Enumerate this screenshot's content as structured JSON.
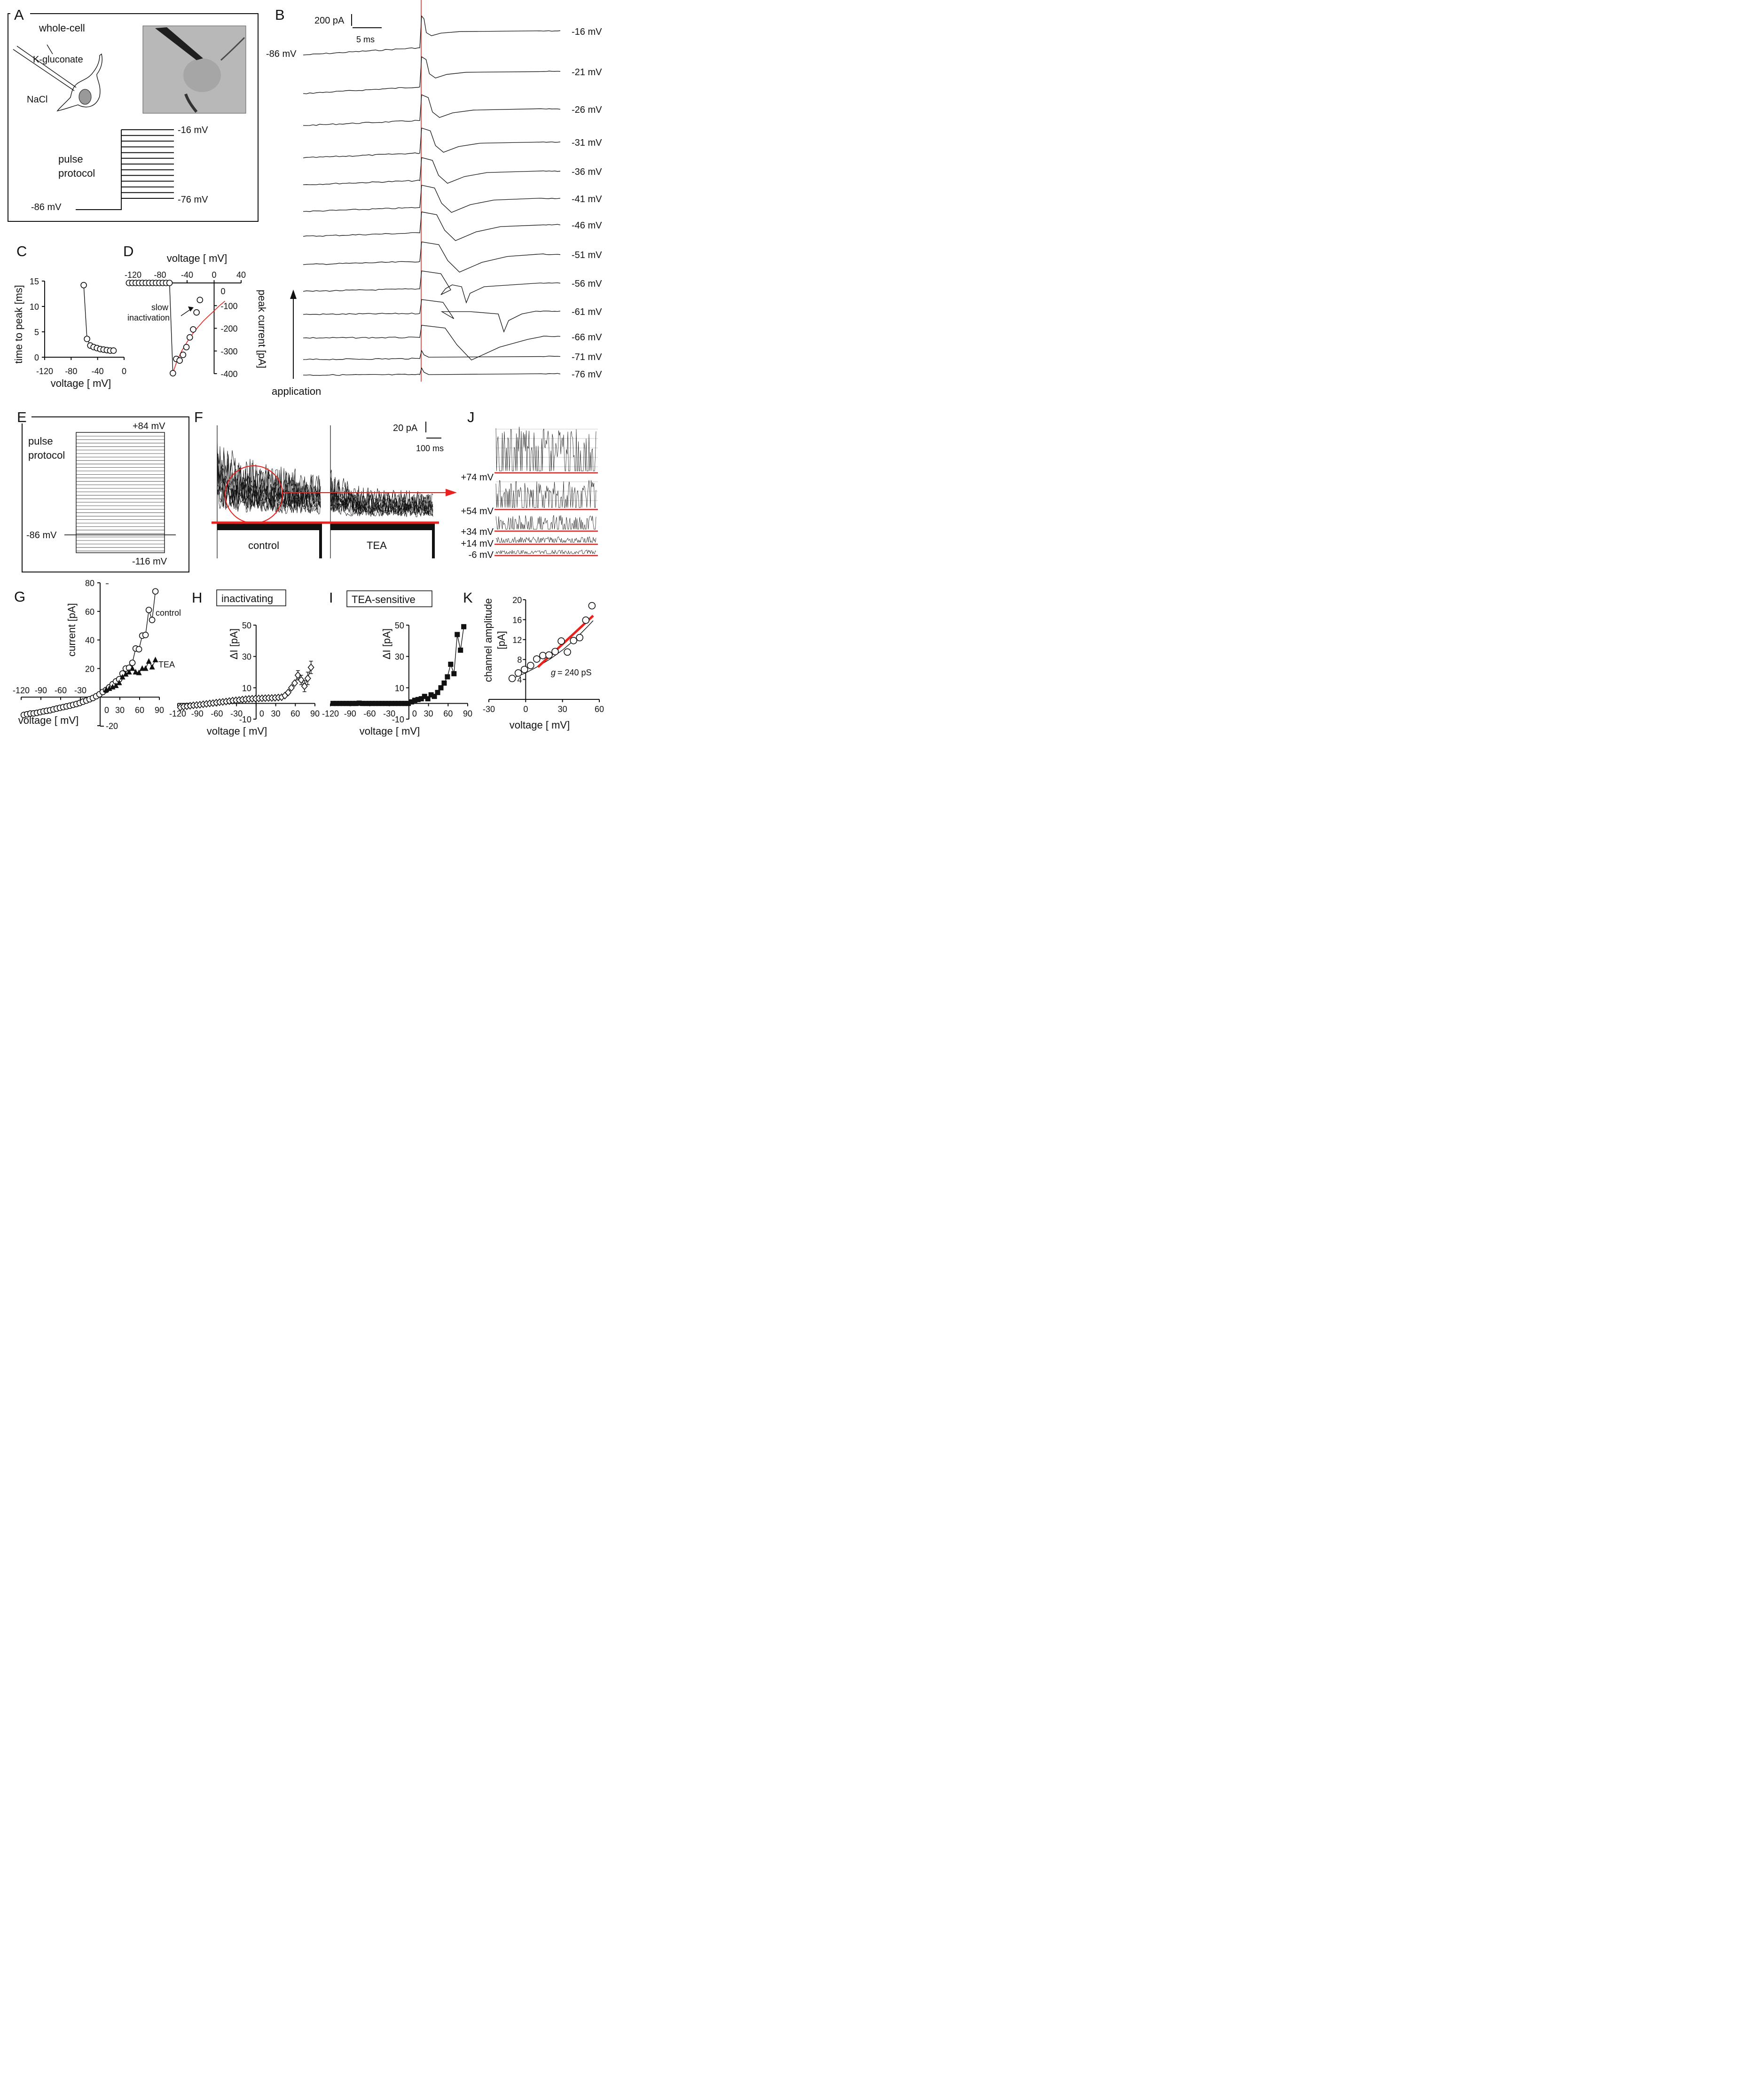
{
  "panels": {
    "A": {
      "letter": "A",
      "title": "whole-cell",
      "pipette_solution": "K-gluconate",
      "bath_solution": "NaCl",
      "protocol_label": [
        "pulse",
        "protocol"
      ],
      "holding": "-86 mV",
      "step_top": "-16 mV",
      "step_bottom": "-76 mV"
    },
    "B": {
      "letter": "B",
      "scale_current": "200 pA",
      "scale_time": "5 ms",
      "holding": "-86 mV",
      "trace_labels": [
        "-16 mV",
        "-21 mV",
        "-26 mV",
        "-31 mV",
        "-36 mV",
        "-41 mV",
        "-46 mV",
        "-51 mV",
        "-56 mV",
        "-61 mV",
        "-66 mV",
        "-71 mV",
        "-76 mV"
      ],
      "application_label": "application"
    },
    "C": {
      "letter": "C"
    },
    "D": {
      "letter": "D",
      "annotation": [
        "slow",
        "inactivation"
      ]
    },
    "E": {
      "letter": "E",
      "protocol_label": [
        "pulse",
        "protocol"
      ],
      "step_top": "+84 mV",
      "holding": "-86 mV",
      "step_bottom": "-116 mV"
    },
    "F": {
      "letter": "F",
      "scale_current": "20 pA",
      "scale_time": "100 ms",
      "condition_1": "control",
      "condition_2": "TEA"
    },
    "J": {
      "letter": "J",
      "trace_labels": [
        "+74 mV",
        "+54 mV",
        "+34 mV",
        "+14 mV",
        "-6 mV"
      ]
    },
    "G": {
      "letter": "G",
      "series_labels": [
        "control",
        "TEA"
      ]
    },
    "H": {
      "letter": "H",
      "title": "inactivating"
    },
    "I": {
      "letter": "I",
      "title": "TEA-sensitive"
    },
    "K": {
      "letter": "K",
      "conductance_label": "g",
      "conductance_value": "= 240 pS"
    }
  },
  "chart_data": [
    {
      "id": "C",
      "type": "scatter",
      "xlabel": "voltage [ mV]",
      "ylabel": "time to peak [ms]",
      "xlim": [
        -120,
        0
      ],
      "ylim": [
        0,
        15
      ],
      "xticks": [
        "-120",
        "-80",
        "-40",
        "0"
      ],
      "yticks": [
        "0",
        "5",
        "10",
        "15"
      ],
      "x": [
        -61,
        -56,
        -51,
        -46,
        -41,
        -36,
        -31,
        -26,
        -21,
        -16
      ],
      "y": [
        14.2,
        3.6,
        2.3,
        2.0,
        1.8,
        1.6,
        1.5,
        1.4,
        1.3,
        1.3
      ]
    },
    {
      "id": "D",
      "type": "scatter",
      "xlabel": "voltage [ mV]",
      "ylabel": "peak current [pA]",
      "xlim": [
        -120,
        40
      ],
      "ylim": [
        -400,
        0
      ],
      "xticks": [
        "-120",
        "-80",
        "-40",
        "0",
        "40"
      ],
      "yticks": [
        "0",
        "-100",
        "-200",
        "-300",
        "-400"
      ],
      "x": [
        -126,
        -121,
        -116,
        -111,
        -106,
        -101,
        -96,
        -91,
        -86,
        -81,
        -76,
        -71,
        -66,
        -61,
        -56,
        -51,
        -46,
        -41,
        -36,
        -31,
        -26,
        -21
      ],
      "y": [
        0,
        0,
        0,
        0,
        0,
        0,
        0,
        0,
        0,
        0,
        0,
        0,
        0,
        -398,
        -335,
        -342,
        -317,
        -283,
        -240,
        -205,
        -130,
        -75
      ],
      "fit": {
        "x": [
          -62,
          -55,
          -48,
          -40,
          -32,
          -24,
          -16,
          -8,
          0,
          8,
          16
        ],
        "y": [
          -405,
          -345,
          -300,
          -260,
          -225,
          -195,
          -168,
          -145,
          -123,
          -100,
          -80
        ]
      }
    },
    {
      "id": "G",
      "type": "line",
      "xlabel": "voltage [ mV]",
      "ylabel": "current [pA]",
      "xlim": [
        -120,
        90
      ],
      "ylim": [
        -20,
        80
      ],
      "xticks": [
        "-120",
        "-90",
        "-60",
        "-30",
        "0",
        "30",
        "60",
        "90"
      ],
      "yticks": [
        "-20",
        "20",
        "40",
        "60",
        "80"
      ],
      "series": [
        {
          "name": "control",
          "x": [
            -116,
            -111,
            -106,
            -101,
            -96,
            -91,
            -86,
            -81,
            -76,
            -71,
            -66,
            -61,
            -56,
            -51,
            -46,
            -41,
            -36,
            -31,
            -26,
            -21,
            -16,
            -11,
            -6,
            -1,
            4,
            9,
            14,
            19,
            24,
            29,
            34,
            39,
            44,
            49,
            54,
            59,
            64,
            69,
            74,
            79,
            84
          ],
          "y": [
            -12.5,
            -12,
            -11.5,
            -11.4,
            -11,
            -10.5,
            -10,
            -9.6,
            -9.2,
            -8.6,
            -8,
            -7.5,
            -7,
            -6.5,
            -6,
            -5.4,
            -4.8,
            -4.1,
            -3.2,
            -2.4,
            -1.5,
            -0.6,
            0.6,
            2,
            3.6,
            5,
            6.9,
            9,
            11,
            12.5,
            16.5,
            20,
            20.5,
            24,
            34,
            33.5,
            43,
            43.5,
            61,
            54,
            74
          ]
        },
        {
          "name": "TEA",
          "x": [
            9,
            14,
            19,
            24,
            29,
            34,
            39,
            44,
            49,
            54,
            59,
            64,
            69,
            74,
            79,
            84
          ],
          "y": [
            5,
            6,
            7,
            8,
            10,
            14,
            16,
            17.5,
            20,
            17.5,
            17,
            20,
            20,
            25,
            21,
            26
          ]
        }
      ]
    },
    {
      "id": "H",
      "type": "line",
      "xlabel": "voltage [ mV]",
      "ylabel": "ΔI [pA]",
      "xlim": [
        -120,
        90
      ],
      "ylim": [
        -10,
        50
      ],
      "xticks": [
        "-120",
        "-90",
        "-60",
        "-30",
        "0",
        "30",
        "60",
        "90"
      ],
      "yticks": [
        "-10",
        "10",
        "30",
        "50"
      ],
      "x": [
        -116,
        -111,
        -106,
        -101,
        -96,
        -91,
        -86,
        -81,
        -76,
        -71,
        -66,
        -61,
        -56,
        -51,
        -46,
        -41,
        -36,
        -31,
        -26,
        -21,
        -16,
        -11,
        -6,
        -1,
        4,
        9,
        14,
        19,
        24,
        29,
        34,
        39,
        44,
        49,
        54,
        59,
        64,
        69,
        74,
        79,
        84
      ],
      "y": [
        -2.5,
        -2,
        -1.8,
        -1.5,
        -1.2,
        -1,
        -0.8,
        -0.5,
        -0.3,
        0,
        0.2,
        0.5,
        0.8,
        1,
        1.2,
        1.5,
        1.8,
        2,
        2.2,
        2.5,
        2.7,
        2.9,
        3,
        3.1,
        3.2,
        3.3,
        3.4,
        3.5,
        3.5,
        3.6,
        3.8,
        4,
        5,
        7,
        10,
        13,
        18,
        15,
        11,
        16,
        23
      ],
      "error": [
        0,
        0,
        0,
        0,
        0,
        0,
        0,
        0,
        0,
        0,
        0,
        0,
        0,
        0,
        0,
        0,
        0,
        0,
        0,
        0,
        0,
        0,
        0,
        0,
        0,
        0,
        0,
        0,
        0,
        0,
        0,
        0,
        0,
        0,
        0,
        0,
        3,
        3,
        3.5,
        4,
        4
      ]
    },
    {
      "id": "I",
      "type": "line",
      "xlabel": "voltage [ mV]",
      "ylabel": "ΔI [pA]",
      "xlim": [
        -120,
        90
      ],
      "ylim": [
        -10,
        50
      ],
      "xticks": [
        "-120",
        "-90",
        "-60",
        "-30",
        "0",
        "30",
        "60",
        "90"
      ],
      "yticks": [
        "-10",
        "10",
        "30",
        "50"
      ],
      "x": [
        -116,
        -111,
        -106,
        -101,
        -96,
        -91,
        -86,
        -81,
        -76,
        -71,
        -66,
        -61,
        -56,
        -51,
        -46,
        -41,
        -36,
        -31,
        -26,
        -21,
        -16,
        -11,
        -6,
        -1,
        4,
        9,
        14,
        19,
        24,
        29,
        34,
        39,
        44,
        49,
        54,
        59,
        64,
        69,
        74,
        79,
        84
      ],
      "y": [
        0,
        0,
        0,
        0,
        0,
        0,
        0,
        0,
        0.2,
        0,
        0,
        0,
        0,
        0,
        0,
        0,
        0,
        0,
        0,
        0,
        0,
        0,
        0,
        0,
        1,
        2,
        2.5,
        3,
        4.5,
        3,
        5.5,
        4.5,
        7,
        10,
        13,
        17,
        25,
        19,
        44,
        34,
        49
      ]
    },
    {
      "id": "K",
      "type": "scatter",
      "xlabel": "voltage [ mV]",
      "ylabel": "channel amplitude [pA]",
      "xlim": [
        -30,
        60
      ],
      "ylim": [
        0,
        20
      ],
      "xticks": [
        "-30",
        "0",
        "30",
        "60"
      ],
      "yticks": [
        "4",
        "8",
        "12",
        "16",
        "20"
      ],
      "x": [
        -11,
        -6,
        -1,
        4,
        9,
        14,
        19,
        24,
        29,
        34,
        39,
        44,
        49,
        54
      ],
      "y": [
        4.2,
        5.3,
        6.0,
        6.8,
        8.1,
        8.8,
        8.9,
        9.6,
        11.7,
        9.5,
        11.8,
        12.4,
        15.9,
        18.8
      ],
      "fit_curve": {
        "x": [
          -11,
          0,
          10,
          20,
          30,
          40,
          50,
          55
        ],
        "y": [
          4.2,
          5.3,
          6.6,
          8.1,
          9.9,
          12.0,
          14.5,
          15.8
        ]
      },
      "fit_line": {
        "x": [
          10,
          55
        ],
        "y": [
          6.5,
          16.8
        ]
      }
    }
  ]
}
